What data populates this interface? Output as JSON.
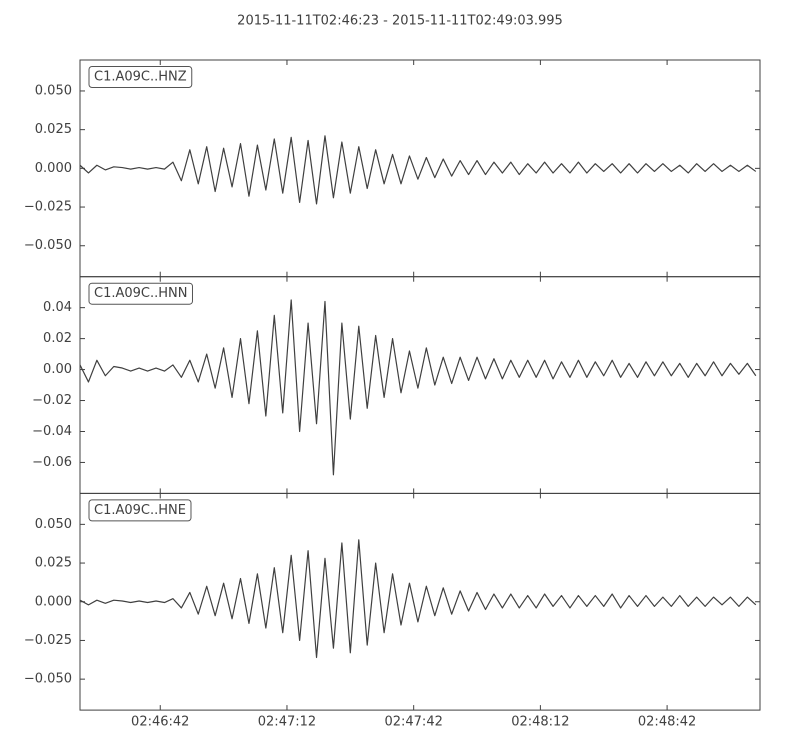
{
  "title": "2015-11-11T02:46:23  -  2015-11-11T02:49:03.995",
  "chart_data": [
    {
      "type": "line",
      "xlim": [
        "02:46:23",
        "02:49:03.995"
      ],
      "ylim": [
        -0.07,
        0.07
      ],
      "yticks": [
        {
          "value": -0.05,
          "label": "−0.050"
        },
        {
          "value": -0.025,
          "label": "−0.025"
        },
        {
          "value": 0,
          "label": "0.000"
        },
        {
          "value": 0.025,
          "label": "0.025"
        },
        {
          "value": 0.05,
          "label": "0.050"
        }
      ],
      "x": [
        "02:46:23",
        "02:46:25",
        "02:46:27",
        "02:46:29",
        "02:46:31",
        "02:46:33",
        "02:46:35",
        "02:46:37",
        "02:46:39",
        "02:46:41",
        "02:46:43",
        "02:46:45",
        "02:46:47",
        "02:46:49",
        "02:46:51",
        "02:46:53",
        "02:46:55",
        "02:46:57",
        "02:46:59",
        "02:47:01",
        "02:47:03",
        "02:47:05",
        "02:47:07",
        "02:47:09",
        "02:47:11",
        "02:47:13",
        "02:47:15",
        "02:47:17",
        "02:47:19",
        "02:47:21",
        "02:47:23",
        "02:47:25",
        "02:47:27",
        "02:47:29",
        "02:47:31",
        "02:47:33",
        "02:47:35",
        "02:47:37",
        "02:47:39",
        "02:47:41",
        "02:47:43",
        "02:47:45",
        "02:47:47",
        "02:47:49",
        "02:47:51",
        "02:47:53",
        "02:47:55",
        "02:47:57",
        "02:47:59",
        "02:48:01",
        "02:48:03",
        "02:48:05",
        "02:48:07",
        "02:48:09",
        "02:48:11",
        "02:48:13",
        "02:48:15",
        "02:48:17",
        "02:48:19",
        "02:48:21",
        "02:48:23",
        "02:48:25",
        "02:48:27",
        "02:48:29",
        "02:48:31",
        "02:48:33",
        "02:48:35",
        "02:48:37",
        "02:48:39",
        "02:48:41",
        "02:48:43",
        "02:48:45",
        "02:48:47",
        "02:48:49",
        "02:48:51",
        "02:48:53",
        "02:48:55",
        "02:48:57",
        "02:48:59",
        "02:49:01",
        "02:49:03"
      ],
      "series": [
        {
          "name": "C1.A09C..HNZ",
          "color": "#404040",
          "values": [
            0.002,
            -0.003,
            0.002,
            -0.001,
            0.001,
            0.0005,
            -0.0005,
            0.0005,
            -0.0005,
            0.0005,
            -0.0005,
            0.004,
            -0.008,
            0.012,
            -0.01,
            0.014,
            -0.015,
            0.013,
            -0.012,
            0.016,
            -0.018,
            0.015,
            -0.014,
            0.019,
            -0.016,
            0.02,
            -0.022,
            0.018,
            -0.023,
            0.021,
            -0.019,
            0.017,
            -0.016,
            0.014,
            -0.013,
            0.012,
            -0.01,
            0.009,
            -0.01,
            0.008,
            -0.007,
            0.007,
            -0.006,
            0.006,
            -0.005,
            0.005,
            -0.004,
            0.005,
            -0.004,
            0.004,
            -0.003,
            0.004,
            -0.004,
            0.003,
            -0.003,
            0.004,
            -0.003,
            0.003,
            -0.003,
            0.004,
            -0.003,
            0.003,
            -0.002,
            0.003,
            -0.003,
            0.003,
            -0.003,
            0.003,
            -0.002,
            0.003,
            -0.002,
            0.002,
            -0.003,
            0.003,
            -0.002,
            0.003,
            -0.002,
            0.002,
            -0.002,
            0.002,
            -0.002
          ]
        }
      ]
    },
    {
      "type": "line",
      "xlim": [
        "02:46:23",
        "02:49:03.995"
      ],
      "ylim": [
        -0.08,
        0.06
      ],
      "yticks": [
        {
          "value": -0.06,
          "label": "−0.06"
        },
        {
          "value": -0.04,
          "label": "−0.04"
        },
        {
          "value": -0.02,
          "label": "−0.02"
        },
        {
          "value": 0,
          "label": "0.00"
        },
        {
          "value": 0.02,
          "label": "0.02"
        },
        0.04
      ],
      "x": [
        "02:46:23",
        "02:46:25",
        "02:46:27",
        "02:46:29",
        "02:46:31",
        "02:46:33",
        "02:46:35",
        "02:46:37",
        "02:46:39",
        "02:46:41",
        "02:46:43",
        "02:46:45",
        "02:46:47",
        "02:46:49",
        "02:46:51",
        "02:46:53",
        "02:46:55",
        "02:46:57",
        "02:46:59",
        "02:47:01",
        "02:47:03",
        "02:47:05",
        "02:47:07",
        "02:47:09",
        "02:47:11",
        "02:47:13",
        "02:47:15",
        "02:47:17",
        "02:47:19",
        "02:47:21",
        "02:47:23",
        "02:47:25",
        "02:47:27",
        "02:47:29",
        "02:47:31",
        "02:47:33",
        "02:47:35",
        "02:47:37",
        "02:47:39",
        "02:47:41",
        "02:47:43",
        "02:47:45",
        "02:47:47",
        "02:47:49",
        "02:47:51",
        "02:47:53",
        "02:47:55",
        "02:47:57",
        "02:47:59",
        "02:48:01",
        "02:48:03",
        "02:48:05",
        "02:48:07",
        "02:48:09",
        "02:48:11",
        "02:48:13",
        "02:48:15",
        "02:48:17",
        "02:48:19",
        "02:48:21",
        "02:48:23",
        "02:48:25",
        "02:48:27",
        "02:48:29",
        "02:48:31",
        "02:48:33",
        "02:48:35",
        "02:48:37",
        "02:48:39",
        "02:48:41",
        "02:48:43",
        "02:48:45",
        "02:48:47",
        "02:48:49",
        "02:48:51",
        "02:48:53",
        "02:48:55",
        "02:48:57",
        "02:48:59",
        "02:49:01",
        "02:49:03"
      ],
      "series": [
        {
          "name": "C1.A09C..HNN",
          "color": "#404040",
          "values": [
            0.003,
            -0.008,
            0.006,
            -0.004,
            0.002,
            0.001,
            -0.001,
            0.001,
            -0.001,
            0.001,
            -0.001,
            0.003,
            -0.005,
            0.006,
            -0.008,
            0.01,
            -0.012,
            0.014,
            -0.018,
            0.02,
            -0.022,
            0.025,
            -0.03,
            0.035,
            -0.028,
            0.045,
            -0.04,
            0.03,
            -0.035,
            0.044,
            -0.068,
            0.03,
            -0.032,
            0.028,
            -0.025,
            0.022,
            -0.018,
            0.02,
            -0.015,
            0.012,
            -0.012,
            0.014,
            -0.01,
            0.008,
            -0.009,
            0.008,
            -0.007,
            0.008,
            -0.006,
            0.007,
            -0.006,
            0.006,
            -0.005,
            0.006,
            -0.005,
            0.006,
            -0.006,
            0.005,
            -0.005,
            0.006,
            -0.005,
            0.005,
            -0.004,
            0.006,
            -0.005,
            0.004,
            -0.005,
            0.005,
            -0.004,
            0.005,
            -0.004,
            0.004,
            -0.005,
            0.004,
            -0.004,
            0.005,
            -0.004,
            0.004,
            -0.003,
            0.004,
            -0.004
          ]
        }
      ]
    },
    {
      "type": "line",
      "xlim": [
        "02:46:23",
        "02:49:03.995"
      ],
      "ylim": [
        -0.07,
        0.07
      ],
      "yticks": [
        {
          "value": -0.05,
          "label": "−0.050"
        },
        {
          "value": -0.025,
          "label": "−0.025"
        },
        {
          "value": 0,
          "label": "0.000"
        },
        {
          "value": 0.025,
          "label": "0.025"
        },
        {
          "value": 0.05,
          "label": "0.050"
        }
      ],
      "xticks": [
        "02:46:42",
        "02:47:12",
        "02:47:42",
        "02:48:12",
        "02:48:42"
      ],
      "x": [
        "02:46:23",
        "02:46:25",
        "02:46:27",
        "02:46:29",
        "02:46:31",
        "02:46:33",
        "02:46:35",
        "02:46:37",
        "02:46:39",
        "02:46:41",
        "02:46:43",
        "02:46:45",
        "02:46:47",
        "02:46:49",
        "02:46:51",
        "02:46:53",
        "02:46:55",
        "02:46:57",
        "02:46:59",
        "02:47:01",
        "02:47:03",
        "02:47:05",
        "02:47:07",
        "02:47:09",
        "02:47:11",
        "02:47:13",
        "02:47:15",
        "02:47:17",
        "02:47:19",
        "02:47:21",
        "02:47:23",
        "02:47:25",
        "02:47:27",
        "02:47:29",
        "02:47:31",
        "02:47:33",
        "02:47:35",
        "02:47:37",
        "02:47:39",
        "02:47:41",
        "02:47:43",
        "02:47:45",
        "02:47:47",
        "02:47:49",
        "02:47:51",
        "02:47:53",
        "02:47:55",
        "02:47:57",
        "02:47:59",
        "02:48:01",
        "02:48:03",
        "02:48:05",
        "02:48:07",
        "02:48:09",
        "02:48:11",
        "02:48:13",
        "02:48:15",
        "02:48:17",
        "02:48:19",
        "02:48:21",
        "02:48:23",
        "02:48:25",
        "02:48:27",
        "02:48:29",
        "02:48:31",
        "02:48:33",
        "02:48:35",
        "02:48:37",
        "02:48:39",
        "02:48:41",
        "02:48:43",
        "02:48:45",
        "02:48:47",
        "02:48:49",
        "02:48:51",
        "02:48:53",
        "02:48:55",
        "02:48:57",
        "02:48:59",
        "02:49:01",
        "02:49:03"
      ],
      "series": [
        {
          "name": "C1.A09C..HNE",
          "color": "#404040",
          "values": [
            0.001,
            -0.002,
            0.001,
            -0.001,
            0.001,
            0.0005,
            -0.0005,
            0.0005,
            -0.0005,
            0.0005,
            -0.0005,
            0.002,
            -0.004,
            0.006,
            -0.008,
            0.01,
            -0.009,
            0.012,
            -0.011,
            0.015,
            -0.014,
            0.018,
            -0.017,
            0.022,
            -0.02,
            0.03,
            -0.025,
            0.033,
            -0.036,
            0.028,
            -0.03,
            0.038,
            -0.033,
            0.04,
            -0.028,
            0.025,
            -0.02,
            0.018,
            -0.015,
            0.012,
            -0.013,
            0.01,
            -0.009,
            0.009,
            -0.008,
            0.007,
            -0.006,
            0.006,
            -0.005,
            0.005,
            -0.004,
            0.005,
            -0.004,
            0.004,
            -0.004,
            0.005,
            -0.003,
            0.004,
            -0.004,
            0.004,
            -0.003,
            0.004,
            -0.003,
            0.005,
            -0.004,
            0.004,
            -0.003,
            0.004,
            -0.003,
            0.003,
            -0.003,
            0.004,
            -0.003,
            0.003,
            -0.003,
            0.003,
            -0.002,
            0.003,
            -0.003,
            0.003,
            -0.002
          ]
        }
      ]
    }
  ]
}
